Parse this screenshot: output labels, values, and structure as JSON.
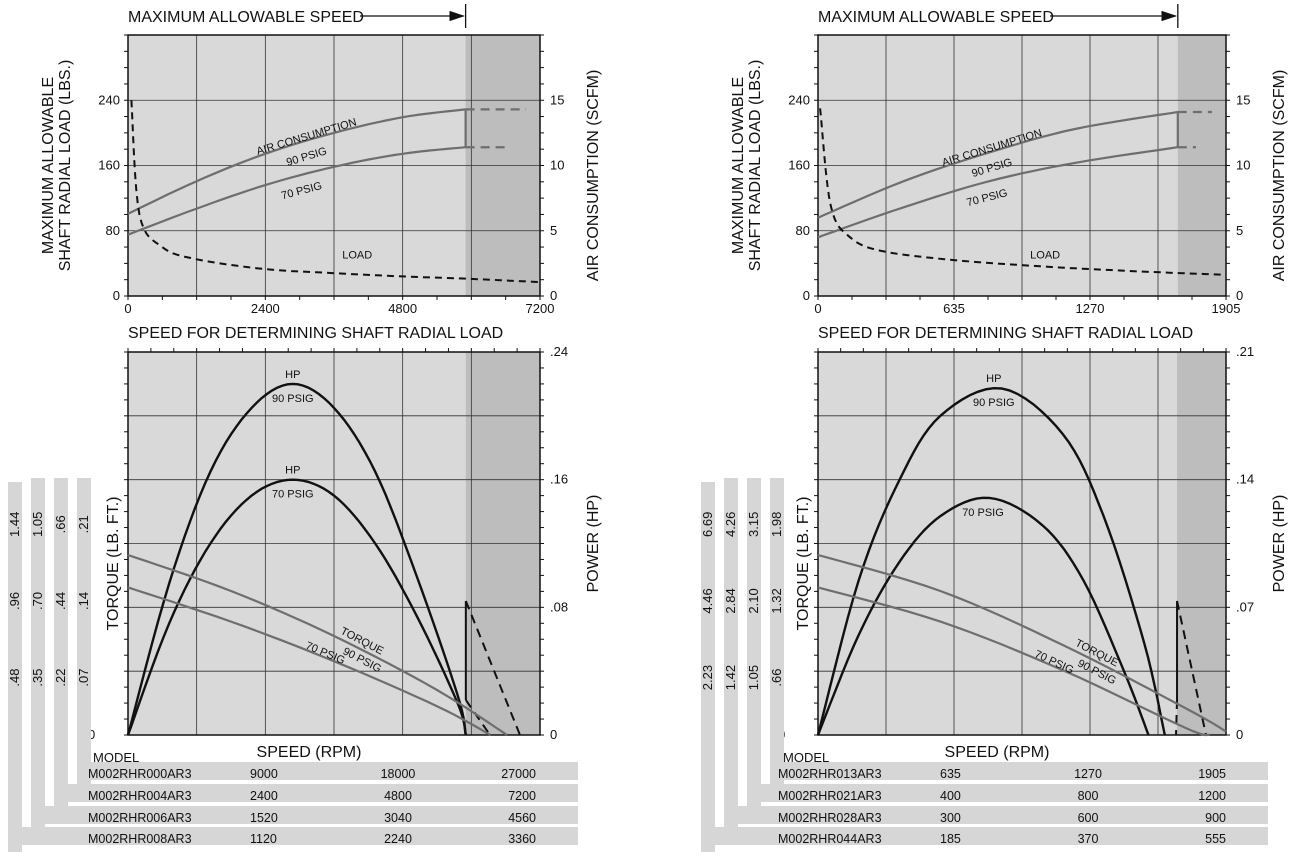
{
  "panels": [
    {
      "id": "left",
      "max_speed_label": "MAXIMUM ALLOWABLE SPEED",
      "upper": {
        "ylabel_left": [
          "MAXIMUM ALLOWABLE",
          "SHAFT RADIAL LOAD (LBS.)"
        ],
        "ylabel_right": "AIR CONSUMPTION (SCFM)",
        "xlabel": "SPEED FOR DETERMINING SHAFT RADIAL LOAD",
        "yticks_left": [
          "0",
          "80",
          "160",
          "240"
        ],
        "yticks_right": [
          "0",
          "5",
          "10",
          "15"
        ],
        "xticks": [
          "0",
          "2400",
          "4800",
          "7200"
        ],
        "label_air": "AIR CONSUMPTION",
        "label_90": "90 PSIG",
        "label_70": "70 PSIG",
        "label_load": "LOAD"
      },
      "lower": {
        "ylabel_left": "TORQUE (LB. FT.)",
        "ylabel_right": "POWER (HP)",
        "xlabel": "SPEED (RPM)",
        "yticks_right": [
          "0",
          ".08",
          ".16",
          ".24"
        ],
        "label_hp90": "HP",
        "label_hp90b": "90 PSIG",
        "label_hp70": "HP",
        "label_hp70b": "70 PSIG",
        "label_torque": "TORQUE",
        "label_t90": "90 PSIG",
        "label_t70": "70 PSIG",
        "zero": "0"
      },
      "torque_scales": [
        [
          "1.44",
          ".96",
          ".48"
        ],
        [
          "1.05",
          ".70",
          ".35"
        ],
        [
          ".66",
          ".44",
          ".22"
        ],
        [
          ".21",
          ".14",
          ".07"
        ]
      ],
      "model_header": "MODEL",
      "table": [
        {
          "model": "M002RHR000AR3",
          "v": [
            "9000",
            "18000",
            "27000"
          ]
        },
        {
          "model": "M002RHR004AR3",
          "v": [
            "2400",
            "4800",
            "7200"
          ]
        },
        {
          "model": "M002RHR006AR3",
          "v": [
            "1520",
            "3040",
            "4560"
          ]
        },
        {
          "model": "M002RHR008AR3",
          "v": [
            "1120",
            "2240",
            "3360"
          ]
        }
      ]
    },
    {
      "id": "right",
      "max_speed_label": "MAXIMUM ALLOWABLE SPEED",
      "upper": {
        "ylabel_left": [
          "MAXIMUM ALLOWABLE",
          "SHAFT RADIAL LOAD (LBS.)"
        ],
        "ylabel_right": "AIR CONSUMPTION (SCFM)",
        "xlabel": "SPEED FOR DETERMINING SHAFT RADIAL LOAD",
        "yticks_left": [
          "0",
          "80",
          "160",
          "240"
        ],
        "yticks_right": [
          "0",
          "5",
          "10",
          "15"
        ],
        "xticks": [
          "0",
          "635",
          "1270",
          "1905"
        ],
        "label_air": "AIR CONSUMPTION",
        "label_90": "90 PSIG",
        "label_70": "70 PSIG",
        "label_load": "LOAD"
      },
      "lower": {
        "ylabel_left": "TORQUE (LB. FT.)",
        "ylabel_right": "POWER (HP)",
        "xlabel": "SPEED (RPM)",
        "yticks_right": [
          "0",
          ".07",
          ".14",
          ".21"
        ],
        "label_hp90": "HP",
        "label_hp90b": "90 PSIG",
        "label_hp70": "",
        "label_hp70b": "70 PSIG",
        "label_torque": "TORQUE",
        "label_t90": "90 PSIG",
        "label_t70": "70 PSIG",
        "zero": "0"
      },
      "torque_scales": [
        [
          "6.69",
          "4.46",
          "2.23"
        ],
        [
          "4.26",
          "2.84",
          "1.42"
        ],
        [
          "3.15",
          "2.10",
          "1.05"
        ],
        [
          "1.98",
          "1.32",
          ".66"
        ]
      ],
      "model_header": "MODEL",
      "table": [
        {
          "model": "M002RHR013AR3",
          "v": [
            "635",
            "1270",
            "1905"
          ]
        },
        {
          "model": "M002RHR021AR3",
          "v": [
            "400",
            "800",
            "1200"
          ]
        },
        {
          "model": "M002RHR028AR3",
          "v": [
            "300",
            "600",
            "900"
          ]
        },
        {
          "model": "M002RHR044AR3",
          "v": [
            "185",
            "370",
            "555"
          ]
        }
      ]
    }
  ],
  "colors": {
    "plot_bg": "#d9d9d9",
    "overspeed_bg": "#bdbdbd",
    "air_line": "#6e6e6e",
    "hp_line": "#111111",
    "torque_line": "#6e6e6e",
    "table_bar": "#d6d6d6"
  },
  "chart_data": [
    {
      "type": "line",
      "title": "",
      "xlabel": "SPEED FOR DETERMINING SHAFT RADIAL LOAD",
      "ylabel": "MAXIMUM ALLOWABLE SHAFT RADIAL LOAD (LBS.)",
      "y2label": "AIR CONSUMPTION (SCFM)",
      "xlim": [
        0,
        7200
      ],
      "ylim": [
        0,
        320
      ],
      "y2lim": [
        0,
        20
      ],
      "max_allowable_speed": 5900,
      "series": [
        {
          "name": "AIR CONSUMPTION 90 PSIG",
          "axis": "y2",
          "x": [
            0,
            1200,
            2400,
            3600,
            4800,
            5900
          ],
          "y": [
            6.3,
            8.8,
            10.9,
            12.5,
            13.7,
            14.3
          ]
        },
        {
          "name": "AIR CONSUMPTION 70 PSIG",
          "axis": "y2",
          "x": [
            0,
            1200,
            2400,
            3600,
            4800,
            5900
          ],
          "y": [
            4.7,
            6.7,
            8.5,
            9.9,
            10.9,
            11.4
          ]
        },
        {
          "name": "LOAD",
          "axis": "y",
          "x": [
            60,
            200,
            600,
            1200,
            2400,
            3600,
            4800,
            6000,
            7200
          ],
          "y": [
            240,
            100,
            60,
            45,
            33,
            28,
            24,
            21,
            17
          ]
        }
      ]
    },
    {
      "type": "line",
      "title": "",
      "xlabel": "SPEED (RPM)",
      "ylabel": "TORQUE (LB. FT.)",
      "y2label": "POWER (HP)",
      "y2lim": [
        0,
        0.24
      ],
      "max_allowable_speed_fraction": 0.82,
      "series": [
        {
          "name": "HP 90 PSIG",
          "x_frac": [
            0,
            0.1,
            0.2,
            0.3,
            0.4,
            0.5,
            0.6,
            0.7,
            0.8,
            0.82
          ],
          "y": [
            0,
            0.095,
            0.165,
            0.205,
            0.22,
            0.205,
            0.165,
            0.1,
            0.025,
            0.0
          ]
        },
        {
          "name": "HP 70 PSIG",
          "x_frac": [
            0,
            0.1,
            0.2,
            0.3,
            0.4,
            0.5,
            0.6,
            0.7,
            0.8,
            0.82
          ],
          "y": [
            0,
            0.07,
            0.12,
            0.15,
            0.16,
            0.15,
            0.12,
            0.075,
            0.02,
            0.0
          ]
        },
        {
          "name": "TORQUE 90 PSIG",
          "x_frac": [
            0,
            0.25,
            0.5,
            0.75,
            0.92
          ],
          "torque_frac": [
            1.0,
            0.8,
            0.55,
            0.25,
            0.0
          ]
        },
        {
          "name": "TORQUE 70 PSIG",
          "x_frac": [
            0,
            0.25,
            0.5,
            0.75,
            0.88
          ],
          "torque_frac": [
            0.82,
            0.63,
            0.41,
            0.16,
            0.0
          ]
        }
      ]
    },
    {
      "type": "line",
      "title": "",
      "xlabel": "SPEED FOR DETERMINING SHAFT RADIAL LOAD",
      "ylabel": "MAXIMUM ALLOWABLE SHAFT RADIAL LOAD (LBS.)",
      "y2label": "AIR CONSUMPTION (SCFM)",
      "xlim": [
        0,
        1905
      ],
      "ylim": [
        0,
        320
      ],
      "y2lim": [
        0,
        20
      ],
      "max_allowable_speed": 1680,
      "series": [
        {
          "name": "AIR CONSUMPTION 90 PSIG",
          "axis": "y2",
          "x": [
            0,
            400,
            800,
            1200,
            1680
          ],
          "y": [
            6.0,
            8.8,
            11.0,
            12.8,
            14.1
          ]
        },
        {
          "name": "AIR CONSUMPTION 70 PSIG",
          "axis": "y2",
          "x": [
            0,
            400,
            800,
            1200,
            1680
          ],
          "y": [
            4.5,
            6.8,
            8.8,
            10.2,
            11.4
          ]
        },
        {
          "name": "LOAD",
          "axis": "y",
          "x": [
            10,
            60,
            150,
            300,
            635,
            1000,
            1270,
            1600,
            1905
          ],
          "y": [
            230,
            110,
            72,
            55,
            44,
            37,
            33,
            29,
            26
          ]
        }
      ]
    },
    {
      "type": "line",
      "title": "",
      "xlabel": "SPEED (RPM)",
      "ylabel": "TORQUE (LB. FT.)",
      "y2label": "POWER (HP)",
      "y2lim": [
        0,
        0.21
      ],
      "max_allowable_speed_fraction": 0.88,
      "series": [
        {
          "name": "HP 90 PSIG",
          "x_frac": [
            0,
            0.1,
            0.2,
            0.3,
            0.45,
            0.6,
            0.7,
            0.8,
            0.85
          ],
          "y": [
            0,
            0.085,
            0.14,
            0.175,
            0.19,
            0.165,
            0.12,
            0.05,
            0.0
          ]
        },
        {
          "name": "HP 70 PSIG",
          "x_frac": [
            0,
            0.1,
            0.2,
            0.3,
            0.42,
            0.55,
            0.65,
            0.75,
            0.81
          ],
          "y": [
            0,
            0.055,
            0.095,
            0.12,
            0.13,
            0.115,
            0.085,
            0.035,
            0.0
          ]
        },
        {
          "name": "TORQUE 90 PSIG",
          "x_frac": [
            0,
            0.3,
            0.6,
            0.9,
            1.0
          ],
          "torque_frac": [
            1.0,
            0.8,
            0.5,
            0.15,
            0.02
          ]
        },
        {
          "name": "TORQUE 70 PSIG",
          "x_frac": [
            0,
            0.3,
            0.6,
            0.9,
            0.96
          ],
          "torque_frac": [
            0.82,
            0.63,
            0.36,
            0.04,
            0.0
          ]
        }
      ]
    }
  ]
}
